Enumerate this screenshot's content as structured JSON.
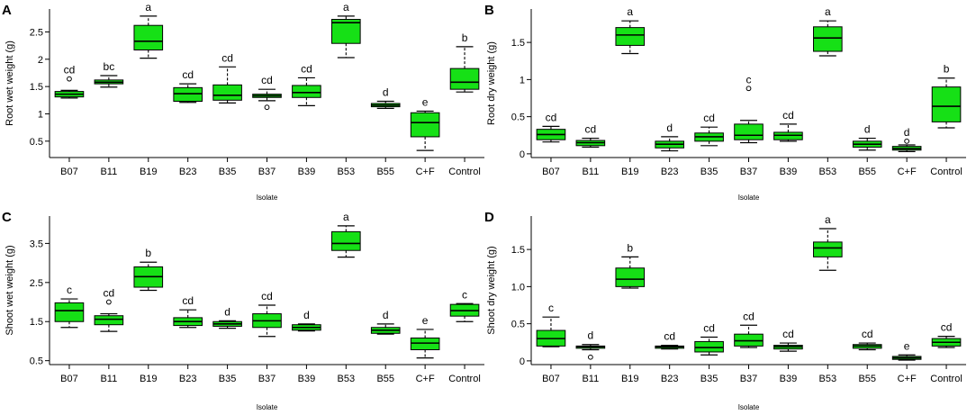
{
  "chart_data": [
    {
      "type": "box",
      "panel": "A",
      "title": "",
      "xlabel": "Isolate",
      "ylabel": "Root wet weight (g)",
      "ylim": [
        0.2,
        2.92
      ],
      "yticks": [
        0.5,
        1,
        1.5,
        2,
        2.5
      ],
      "ytick_labels": [
        "0.5",
        "1",
        "1.5",
        "2",
        "2.5"
      ],
      "categories": [
        "B07",
        "B11",
        "B19",
        "B23",
        "B35",
        "B37",
        "B39",
        "B53",
        "B55",
        "C+F",
        "Control"
      ],
      "boxes": [
        {
          "category": "B07",
          "min": 1.29,
          "q1": 1.31,
          "median": 1.36,
          "q3": 1.41,
          "max": 1.43,
          "outliers": [
            1.64
          ],
          "label": "cd"
        },
        {
          "category": "B11",
          "min": 1.49,
          "q1": 1.55,
          "median": 1.58,
          "q3": 1.62,
          "max": 1.7,
          "outliers": [],
          "label": "bc"
        },
        {
          "category": "B19",
          "min": 2.02,
          "q1": 2.17,
          "median": 2.33,
          "q3": 2.62,
          "max": 2.79,
          "outliers": [],
          "label": "a"
        },
        {
          "category": "B23",
          "min": 1.21,
          "q1": 1.23,
          "median": 1.37,
          "q3": 1.48,
          "max": 1.55,
          "outliers": [],
          "label": "cd"
        },
        {
          "category": "B35",
          "min": 1.2,
          "q1": 1.25,
          "median": 1.34,
          "q3": 1.53,
          "max": 1.86,
          "outliers": [],
          "label": "cd"
        },
        {
          "category": "B37",
          "min": 1.24,
          "q1": 1.3,
          "median": 1.33,
          "q3": 1.36,
          "max": 1.45,
          "outliers": [
            1.12
          ],
          "label": "cd"
        },
        {
          "category": "B39",
          "min": 1.15,
          "q1": 1.3,
          "median": 1.39,
          "q3": 1.52,
          "max": 1.66,
          "outliers": [],
          "label": "cd"
        },
        {
          "category": "B53",
          "min": 2.03,
          "q1": 2.29,
          "median": 2.67,
          "q3": 2.73,
          "max": 2.79,
          "outliers": [],
          "label": "a"
        },
        {
          "category": "B55",
          "min": 1.1,
          "q1": 1.13,
          "median": 1.16,
          "q3": 1.19,
          "max": 1.23,
          "outliers": [],
          "label": "d"
        },
        {
          "category": "C+F",
          "min": 0.33,
          "q1": 0.58,
          "median": 0.84,
          "q3": 1.02,
          "max": 1.05,
          "outliers": [],
          "label": "e"
        },
        {
          "category": "Control",
          "min": 1.4,
          "q1": 1.45,
          "median": 1.58,
          "q3": 1.83,
          "max": 2.23,
          "outliers": [],
          "label": "b"
        }
      ]
    },
    {
      "type": "box",
      "panel": "B",
      "title": "",
      "xlabel": "Isolate",
      "ylabel": "Root dry weight (g)",
      "ylim": [
        -0.05,
        1.95
      ],
      "yticks": [
        0,
        0.5,
        1,
        1.5
      ],
      "ytick_labels": [
        "0",
        "0.5",
        "1",
        "1.5"
      ],
      "categories": [
        "B07",
        "B11",
        "B19",
        "B23",
        "B35",
        "B37",
        "B39",
        "B53",
        "B55",
        "C+F",
        "Control"
      ],
      "boxes": [
        {
          "category": "B07",
          "min": 0.16,
          "q1": 0.19,
          "median": 0.26,
          "q3": 0.33,
          "max": 0.37,
          "outliers": [],
          "label": "cd"
        },
        {
          "category": "B11",
          "min": 0.09,
          "q1": 0.11,
          "median": 0.15,
          "q3": 0.18,
          "max": 0.21,
          "outliers": [],
          "label": "cd"
        },
        {
          "category": "B19",
          "min": 1.35,
          "q1": 1.46,
          "median": 1.6,
          "q3": 1.7,
          "max": 1.79,
          "outliers": [],
          "label": "a"
        },
        {
          "category": "B23",
          "min": 0.04,
          "q1": 0.08,
          "median": 0.13,
          "q3": 0.17,
          "max": 0.23,
          "outliers": [],
          "label": "d"
        },
        {
          "category": "B35",
          "min": 0.11,
          "q1": 0.17,
          "median": 0.23,
          "q3": 0.28,
          "max": 0.36,
          "outliers": [],
          "label": "cd"
        },
        {
          "category": "B37",
          "min": 0.15,
          "q1": 0.19,
          "median": 0.25,
          "q3": 0.4,
          "max": 0.45,
          "outliers": [
            0.88
          ],
          "label": "c"
        },
        {
          "category": "B39",
          "min": 0.17,
          "q1": 0.19,
          "median": 0.25,
          "q3": 0.29,
          "max": 0.4,
          "outliers": [],
          "label": "cd"
        },
        {
          "category": "B53",
          "min": 1.32,
          "q1": 1.38,
          "median": 1.56,
          "q3": 1.71,
          "max": 1.79,
          "outliers": [],
          "label": "a"
        },
        {
          "category": "B55",
          "min": 0.05,
          "q1": 0.09,
          "median": 0.13,
          "q3": 0.17,
          "max": 0.21,
          "outliers": [],
          "label": "d"
        },
        {
          "category": "C+F",
          "min": 0.03,
          "q1": 0.05,
          "median": 0.07,
          "q3": 0.1,
          "max": 0.12,
          "outliers": [
            0.17
          ],
          "label": "d"
        },
        {
          "category": "Control",
          "min": 0.35,
          "q1": 0.43,
          "median": 0.64,
          "q3": 0.9,
          "max": 1.02,
          "outliers": [],
          "label": "b"
        }
      ]
    },
    {
      "type": "box",
      "panel": "C",
      "title": "",
      "xlabel": "Isolate",
      "ylabel": "Shoot wet weight (g)",
      "ylim": [
        0.4,
        4.2
      ],
      "yticks": [
        0.5,
        1.5,
        2.5,
        3.5
      ],
      "ytick_labels": [
        "0.5",
        "1.5",
        "2.5",
        "3.5"
      ],
      "categories": [
        "B07",
        "B11",
        "B19",
        "B23",
        "B35",
        "B37",
        "B39",
        "B53",
        "B55",
        "C+F",
        "Control"
      ],
      "boxes": [
        {
          "category": "B07",
          "min": 1.35,
          "q1": 1.5,
          "median": 1.78,
          "q3": 1.98,
          "max": 2.08,
          "outliers": [],
          "label": "c"
        },
        {
          "category": "B11",
          "min": 1.25,
          "q1": 1.42,
          "median": 1.56,
          "q3": 1.65,
          "max": 1.7,
          "outliers": [
            2.0
          ],
          "label": "cd"
        },
        {
          "category": "B19",
          "min": 2.3,
          "q1": 2.38,
          "median": 2.65,
          "q3": 2.9,
          "max": 3.02,
          "outliers": [],
          "label": "b"
        },
        {
          "category": "B23",
          "min": 1.35,
          "q1": 1.4,
          "median": 1.5,
          "q3": 1.6,
          "max": 1.8,
          "outliers": [],
          "label": "cd"
        },
        {
          "category": "B35",
          "min": 1.33,
          "q1": 1.38,
          "median": 1.44,
          "q3": 1.5,
          "max": 1.52,
          "outliers": [],
          "label": "d"
        },
        {
          "category": "B37",
          "min": 1.12,
          "q1": 1.35,
          "median": 1.52,
          "q3": 1.7,
          "max": 1.92,
          "outliers": [],
          "label": "cd"
        },
        {
          "category": "B39",
          "min": 1.26,
          "q1": 1.28,
          "median": 1.35,
          "q3": 1.42,
          "max": 1.44,
          "outliers": [],
          "label": "d"
        },
        {
          "category": "B53",
          "min": 3.15,
          "q1": 3.32,
          "median": 3.5,
          "q3": 3.8,
          "max": 3.95,
          "outliers": [],
          "label": "a"
        },
        {
          "category": "B55",
          "min": 1.18,
          "q1": 1.2,
          "median": 1.28,
          "q3": 1.35,
          "max": 1.44,
          "outliers": [],
          "label": "d"
        },
        {
          "category": "C+F",
          "min": 0.57,
          "q1": 0.78,
          "median": 0.95,
          "q3": 1.08,
          "max": 1.3,
          "outliers": [],
          "label": "e"
        },
        {
          "category": "Control",
          "min": 1.5,
          "q1": 1.64,
          "median": 1.78,
          "q3": 1.94,
          "max": 1.96,
          "outliers": [],
          "label": "c"
        }
      ]
    },
    {
      "type": "box",
      "panel": "D",
      "title": "",
      "xlabel": "Isolate",
      "ylabel": "Shoot dry weight (g)",
      "ylim": [
        -0.05,
        1.95
      ],
      "yticks": [
        0,
        0.5,
        1,
        1.5
      ],
      "ytick_labels": [
        "0",
        "0.5",
        "1.0",
        "1.5"
      ],
      "categories": [
        "B07",
        "B11",
        "B19",
        "B23",
        "B35",
        "B37",
        "B39",
        "B53",
        "B55",
        "C+F",
        "Control"
      ],
      "boxes": [
        {
          "category": "B07",
          "min": 0.19,
          "q1": 0.2,
          "median": 0.3,
          "q3": 0.41,
          "max": 0.59,
          "outliers": [],
          "label": "c"
        },
        {
          "category": "B11",
          "min": 0.15,
          "q1": 0.17,
          "median": 0.19,
          "q3": 0.2,
          "max": 0.22,
          "outliers": [
            0.05
          ],
          "label": "d"
        },
        {
          "category": "B19",
          "min": 0.98,
          "q1": 1.0,
          "median": 1.1,
          "q3": 1.25,
          "max": 1.4,
          "outliers": [],
          "label": "b"
        },
        {
          "category": "B23",
          "min": 0.16,
          "q1": 0.17,
          "median": 0.19,
          "q3": 0.2,
          "max": 0.21,
          "outliers": [],
          "label": "cd"
        },
        {
          "category": "B35",
          "min": 0.08,
          "q1": 0.12,
          "median": 0.18,
          "q3": 0.26,
          "max": 0.32,
          "outliers": [],
          "label": "cd"
        },
        {
          "category": "B37",
          "min": 0.18,
          "q1": 0.2,
          "median": 0.27,
          "q3": 0.36,
          "max": 0.48,
          "outliers": [],
          "label": "cd"
        },
        {
          "category": "B39",
          "min": 0.13,
          "q1": 0.16,
          "median": 0.19,
          "q3": 0.21,
          "max": 0.24,
          "outliers": [],
          "label": "cd"
        },
        {
          "category": "B53",
          "min": 1.22,
          "q1": 1.4,
          "median": 1.52,
          "q3": 1.6,
          "max": 1.78,
          "outliers": [],
          "label": "a"
        },
        {
          "category": "B55",
          "min": 0.15,
          "q1": 0.17,
          "median": 0.2,
          "q3": 0.22,
          "max": 0.24,
          "outliers": [],
          "label": "cd"
        },
        {
          "category": "C+F",
          "min": 0.01,
          "q1": 0.02,
          "median": 0.04,
          "q3": 0.06,
          "max": 0.08,
          "outliers": [],
          "label": "e"
        },
        {
          "category": "Control",
          "min": 0.18,
          "q1": 0.2,
          "median": 0.25,
          "q3": 0.3,
          "max": 0.33,
          "outliers": [],
          "label": "cd"
        }
      ]
    }
  ],
  "colors": {
    "box_fill": "#16e016",
    "box_stroke": "#000000",
    "axis": "#000000",
    "background": "#ffffff"
  }
}
